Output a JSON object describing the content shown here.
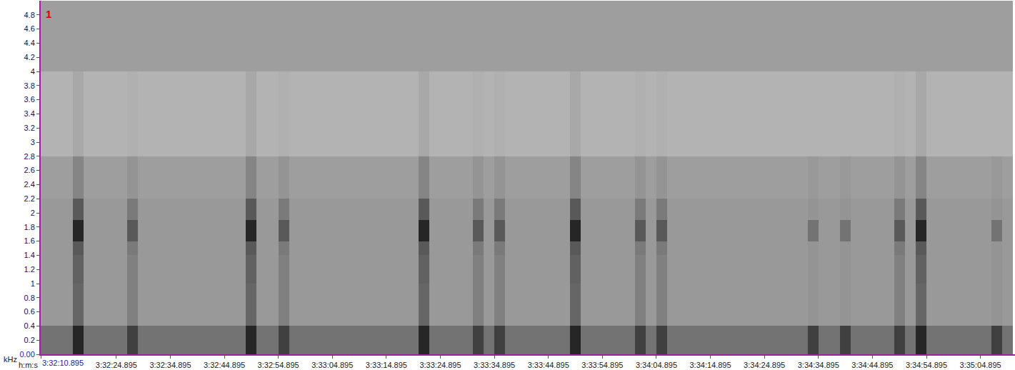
{
  "chart_data": {
    "type": "heatmap",
    "xlabel": "h:m:s",
    "ylabel": "kHz",
    "annotations": [
      "1"
    ],
    "xlim": [
      0,
      180.4
    ],
    "ylim": [
      0,
      5.0
    ],
    "zlim": [
      0,
      100
    ],
    "grid": false,
    "xticks": [
      {
        "value": 0,
        "label": "3:32:10.895"
      },
      {
        "value": 14,
        "label": "3:32:24.895"
      },
      {
        "value": 24,
        "label": "3:32:34.895"
      },
      {
        "value": 34,
        "label": "3:32:44.895"
      },
      {
        "value": 44,
        "label": "3:32:54.895"
      },
      {
        "value": 54,
        "label": "3:33:04.895"
      },
      {
        "value": 64,
        "label": "3:33:14.895"
      },
      {
        "value": 74,
        "label": "3:33:24.895"
      },
      {
        "value": 84,
        "label": "3:33:34.895"
      },
      {
        "value": 94,
        "label": "3:33:44.895"
      },
      {
        "value": 104,
        "label": "3:33:54.895"
      },
      {
        "value": 114,
        "label": "3:34:04.895"
      },
      {
        "value": 124,
        "label": "3:34:14.895"
      },
      {
        "value": 134,
        "label": "3:34:24.895"
      },
      {
        "value": 144,
        "label": "3:34:34.895"
      },
      {
        "value": 154,
        "label": "3:34:44.895"
      },
      {
        "value": 164,
        "label": "3:34:54.895"
      },
      {
        "value": 174,
        "label": "3:35:04.895"
      }
    ],
    "yticks": [
      {
        "value": 0,
        "label": "0.00"
      },
      0.2,
      0.4,
      0.6,
      0.8,
      1,
      1.2,
      1.4,
      1.6,
      1.8,
      2,
      2.2,
      2.4,
      2.6,
      2.8,
      3,
      3.2,
      3.4,
      3.6,
      3.8,
      4,
      4.2,
      4.4,
      4.6,
      4.8
    ],
    "x": [
      1,
      3,
      5,
      7,
      9,
      11,
      13,
      15,
      17,
      19,
      21,
      23,
      25,
      27,
      29,
      31,
      33,
      35,
      37,
      39,
      41,
      43,
      45,
      47,
      49,
      51,
      53,
      55,
      57,
      59,
      61,
      63,
      65,
      67,
      69,
      71,
      73,
      75,
      77,
      79,
      81,
      83,
      85,
      87,
      89,
      91,
      93,
      95,
      97,
      99,
      101,
      103,
      105,
      107,
      109,
      111,
      113,
      115,
      117,
      119,
      121,
      123,
      125,
      127,
      129,
      131,
      133,
      135,
      137,
      139,
      141,
      143,
      145,
      147,
      149,
      151,
      153,
      155,
      157,
      159,
      161,
      163,
      165,
      167,
      169,
      171,
      173,
      175,
      177,
      179
    ],
    "y_bins": [
      0,
      0.4,
      1.0,
      1.4,
      1.6,
      1.9,
      2.2,
      2.8,
      4.0,
      5.0
    ],
    "cells": [
      [
        55,
        55,
        55,
        85,
        55,
        55,
        55,
        55,
        75,
        55,
        55,
        55,
        55,
        55,
        55,
        55,
        55,
        55,
        55,
        85,
        55,
        55,
        75,
        55,
        55,
        55,
        55,
        55,
        55,
        55,
        55,
        55,
        55,
        55,
        55,
        85,
        55,
        55,
        55,
        55,
        75,
        55,
        75,
        55,
        55,
        55,
        55,
        55,
        55,
        85,
        55,
        55,
        55,
        55,
        55,
        75,
        55,
        75,
        55,
        55,
        55,
        55,
        55,
        55,
        55,
        55,
        55,
        55,
        55,
        55,
        55,
        75,
        55,
        55,
        75,
        55,
        55,
        55,
        55,
        75,
        55,
        85,
        55,
        55,
        55,
        55,
        55,
        55,
        75,
        55
      ],
      [
        40,
        40,
        40,
        60,
        40,
        40,
        40,
        40,
        50,
        40,
        40,
        40,
        40,
        40,
        40,
        40,
        40,
        40,
        40,
        60,
        40,
        40,
        50,
        40,
        40,
        40,
        40,
        40,
        40,
        40,
        40,
        40,
        40,
        40,
        40,
        60,
        40,
        40,
        40,
        40,
        50,
        40,
        50,
        40,
        40,
        40,
        40,
        40,
        40,
        60,
        40,
        40,
        40,
        40,
        40,
        50,
        40,
        50,
        40,
        40,
        40,
        40,
        40,
        40,
        40,
        40,
        40,
        40,
        40,
        40,
        40,
        42,
        40,
        40,
        42,
        40,
        40,
        40,
        40,
        50,
        40,
        60,
        40,
        40,
        40,
        40,
        40,
        40,
        42,
        40
      ],
      [
        40,
        40,
        40,
        62,
        40,
        40,
        40,
        40,
        50,
        40,
        40,
        40,
        40,
        40,
        40,
        40,
        40,
        40,
        40,
        62,
        40,
        40,
        50,
        40,
        40,
        40,
        40,
        40,
        40,
        40,
        40,
        40,
        40,
        40,
        40,
        62,
        40,
        40,
        40,
        40,
        50,
        40,
        50,
        40,
        40,
        40,
        40,
        40,
        40,
        62,
        40,
        40,
        40,
        40,
        40,
        50,
        40,
        50,
        40,
        40,
        40,
        40,
        40,
        40,
        40,
        40,
        40,
        40,
        40,
        40,
        40,
        42,
        40,
        40,
        42,
        40,
        40,
        40,
        40,
        50,
        40,
        62,
        40,
        40,
        40,
        40,
        40,
        40,
        42,
        40
      ],
      [
        40,
        40,
        40,
        65,
        40,
        40,
        40,
        40,
        52,
        40,
        40,
        40,
        40,
        40,
        40,
        40,
        40,
        40,
        40,
        65,
        40,
        40,
        52,
        40,
        40,
        40,
        40,
        40,
        40,
        40,
        40,
        40,
        40,
        40,
        40,
        65,
        40,
        40,
        40,
        40,
        52,
        40,
        52,
        40,
        40,
        40,
        40,
        40,
        40,
        65,
        40,
        40,
        40,
        40,
        40,
        52,
        40,
        52,
        40,
        40,
        40,
        40,
        40,
        40,
        40,
        40,
        40,
        40,
        40,
        40,
        40,
        42,
        40,
        40,
        42,
        40,
        40,
        40,
        40,
        52,
        40,
        65,
        40,
        40,
        40,
        40,
        40,
        40,
        42,
        40
      ],
      [
        40,
        40,
        40,
        85,
        40,
        40,
        40,
        40,
        65,
        40,
        40,
        40,
        40,
        40,
        40,
        40,
        40,
        40,
        40,
        85,
        40,
        40,
        65,
        40,
        40,
        40,
        40,
        40,
        40,
        40,
        40,
        40,
        40,
        40,
        40,
        85,
        40,
        40,
        40,
        40,
        65,
        40,
        65,
        40,
        40,
        40,
        40,
        40,
        40,
        85,
        40,
        40,
        40,
        40,
        40,
        65,
        40,
        65,
        40,
        40,
        40,
        40,
        40,
        40,
        40,
        40,
        40,
        40,
        40,
        40,
        40,
        55,
        40,
        40,
        55,
        40,
        40,
        40,
        40,
        65,
        40,
        85,
        40,
        40,
        40,
        40,
        40,
        40,
        55,
        40
      ],
      [
        40,
        40,
        40,
        65,
        40,
        40,
        40,
        40,
        52,
        40,
        40,
        40,
        40,
        40,
        40,
        40,
        40,
        40,
        40,
        65,
        40,
        40,
        52,
        40,
        40,
        40,
        40,
        40,
        40,
        40,
        40,
        40,
        40,
        40,
        40,
        65,
        40,
        40,
        40,
        40,
        52,
        40,
        52,
        40,
        40,
        40,
        40,
        40,
        40,
        65,
        40,
        40,
        40,
        40,
        40,
        52,
        40,
        52,
        40,
        40,
        40,
        40,
        40,
        40,
        40,
        40,
        40,
        40,
        40,
        40,
        40,
        42,
        40,
        40,
        42,
        40,
        40,
        40,
        40,
        52,
        40,
        65,
        40,
        40,
        40,
        40,
        40,
        40,
        42,
        40
      ],
      [
        38,
        38,
        38,
        48,
        38,
        38,
        38,
        38,
        42,
        38,
        38,
        38,
        38,
        38,
        38,
        38,
        38,
        38,
        38,
        48,
        38,
        38,
        42,
        38,
        38,
        38,
        38,
        38,
        38,
        38,
        38,
        38,
        38,
        38,
        38,
        48,
        38,
        38,
        38,
        38,
        42,
        38,
        42,
        38,
        38,
        38,
        38,
        38,
        38,
        48,
        38,
        38,
        38,
        38,
        38,
        42,
        38,
        42,
        38,
        38,
        38,
        38,
        38,
        38,
        38,
        38,
        38,
        38,
        38,
        38,
        38,
        40,
        38,
        38,
        40,
        38,
        38,
        38,
        38,
        42,
        38,
        48,
        38,
        38,
        38,
        38,
        38,
        38,
        40,
        38
      ],
      [
        30,
        30,
        30,
        34,
        30,
        30,
        30,
        30,
        31,
        30,
        30,
        30,
        30,
        30,
        30,
        30,
        30,
        30,
        30,
        34,
        30,
        30,
        31,
        30,
        30,
        30,
        30,
        30,
        30,
        30,
        30,
        30,
        30,
        30,
        30,
        34,
        30,
        30,
        30,
        30,
        31,
        30,
        31,
        30,
        30,
        30,
        30,
        30,
        30,
        34,
        30,
        30,
        30,
        30,
        30,
        31,
        30,
        31,
        30,
        30,
        30,
        30,
        30,
        30,
        30,
        30,
        30,
        30,
        30,
        30,
        30,
        30,
        30,
        30,
        30,
        30,
        30,
        30,
        30,
        31,
        30,
        34,
        30,
        30,
        30,
        30,
        30,
        30,
        30,
        30
      ],
      [
        38,
        38,
        38,
        38,
        38,
        38,
        38,
        38,
        38,
        38,
        38,
        38,
        38,
        38,
        38,
        38,
        38,
        38,
        38,
        38,
        38,
        38,
        38,
        38,
        38,
        38,
        38,
        38,
        38,
        38,
        38,
        38,
        38,
        38,
        38,
        38,
        38,
        38,
        38,
        38,
        38,
        38,
        38,
        38,
        38,
        38,
        38,
        38,
        38,
        38,
        38,
        38,
        38,
        38,
        38,
        38,
        38,
        38,
        38,
        38,
        38,
        38,
        38,
        38,
        38,
        38,
        38,
        38,
        38,
        38,
        38,
        38,
        38,
        38,
        38,
        38,
        38,
        38,
        38,
        38,
        38,
        38,
        38,
        38,
        38,
        38,
        38,
        38,
        38,
        38
      ]
    ]
  }
}
